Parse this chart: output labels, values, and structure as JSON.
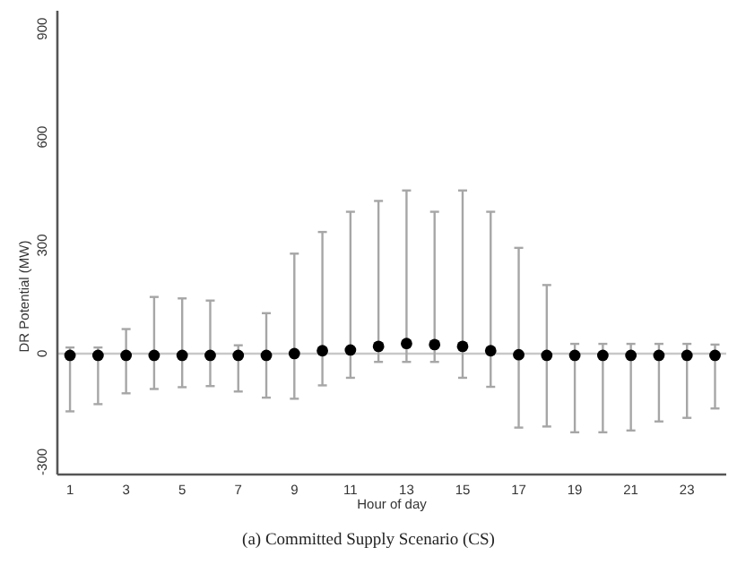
{
  "chart_data": {
    "type": "scatter",
    "xlabel": "Hour of day",
    "ylabel": "DR Potential (MW)",
    "annotations": [
      "(a) Committed Supply Scenario (CS)"
    ],
    "x": [
      1,
      2,
      3,
      4,
      5,
      6,
      7,
      8,
      9,
      10,
      11,
      12,
      13,
      14,
      15,
      16,
      17,
      18,
      19,
      20,
      21,
      22,
      23,
      24
    ],
    "series": [
      {
        "color": "#000000",
        "values": [
          -5,
          -5,
          -5,
          -5,
          -5,
          -5,
          -5,
          -5,
          0,
          8,
          10,
          20,
          28,
          25,
          20,
          8,
          -3,
          -5,
          -5,
          -5,
          -5,
          -5,
          -5,
          -5
        ],
        "errors": [
          [
            -160,
            17
          ],
          [
            -140,
            17
          ],
          [
            -110,
            68
          ],
          [
            -98,
            157
          ],
          [
            -93,
            153
          ],
          [
            -90,
            147
          ],
          [
            -105,
            23
          ],
          [
            -122,
            112
          ],
          [
            -125,
            277
          ],
          [
            -88,
            337
          ],
          [
            -67,
            393
          ],
          [
            -23,
            423
          ],
          [
            -23,
            452
          ],
          [
            -23,
            393
          ],
          [
            -67,
            452
          ],
          [
            -92,
            393
          ],
          [
            -205,
            293
          ],
          [
            -202,
            190
          ],
          [
            -218,
            27
          ],
          [
            -218,
            27
          ],
          [
            -213,
            27
          ],
          [
            -188,
            27
          ],
          [
            -178,
            27
          ],
          [
            -152,
            25
          ]
        ]
      }
    ],
    "marker": "circle",
    "grid": false,
    "xlim": [
      0.55,
      24.4
    ],
    "xticks": [
      1,
      3,
      5,
      7,
      9,
      11,
      13,
      15,
      17,
      19,
      21,
      23
    ],
    "ylim": [
      -335,
      950
    ],
    "yticks": [
      -300,
      0,
      300,
      600,
      900
    ],
    "ref_lines": [
      {
        "axis": "y",
        "value": 0,
        "color": "#c8c8c8"
      }
    ]
  }
}
